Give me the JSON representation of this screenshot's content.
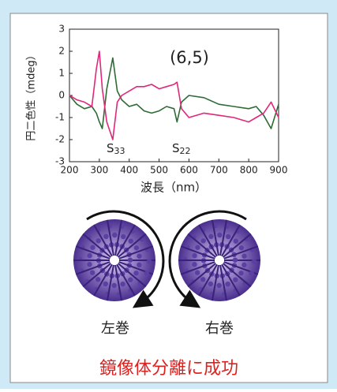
{
  "chart_data": {
    "type": "line",
    "x_label": "波長（nm）",
    "y_label": "円二色性（mdeg）",
    "annotations": [
      {
        "text": "(6,5)"
      },
      {
        "text": "S",
        "sub": "33"
      },
      {
        "text": "S",
        "sub": "22"
      }
    ],
    "x": [
      200,
      225,
      250,
      275,
      290,
      300,
      310,
      325,
      345,
      360,
      375,
      400,
      425,
      450,
      475,
      500,
      525,
      550,
      560,
      575,
      600,
      650,
      700,
      750,
      800,
      825,
      850,
      875,
      900
    ],
    "series": [
      {
        "color": "#2e6b35",
        "values": [
          0,
          -0.4,
          -0.6,
          -0.5,
          -0.8,
          -1.2,
          -1.5,
          0.3,
          1.7,
          0.2,
          -0.2,
          -0.5,
          -0.4,
          -0.7,
          -0.8,
          -0.7,
          -0.5,
          -0.6,
          -1.2,
          -0.3,
          0,
          -0.1,
          -0.4,
          -0.5,
          -0.6,
          -0.5,
          -0.9,
          -1.5,
          -0.4
        ]
      },
      {
        "color": "#e0287a",
        "values": [
          0,
          -0.2,
          -0.3,
          -0.5,
          1.2,
          2.0,
          0.3,
          -1.2,
          -2.0,
          -0.3,
          0,
          0.2,
          0.4,
          0.4,
          0.5,
          0.3,
          0.4,
          0.5,
          0.6,
          -0.6,
          -1.0,
          -0.8,
          -0.9,
          -1.0,
          -1.2,
          -1.0,
          -0.8,
          -0.3,
          -1.0
        ]
      }
    ],
    "xlim": [
      200,
      900
    ],
    "xticks": [
      200,
      300,
      400,
      500,
      600,
      700,
      800,
      900
    ],
    "ylim": [
      -3,
      3
    ],
    "yticks": [
      -3,
      -2,
      -1,
      0,
      1,
      2,
      3
    ]
  },
  "figure": {
    "left_label": "左巻",
    "right_label": "右巻",
    "caption": "鏡像体分離に成功"
  }
}
